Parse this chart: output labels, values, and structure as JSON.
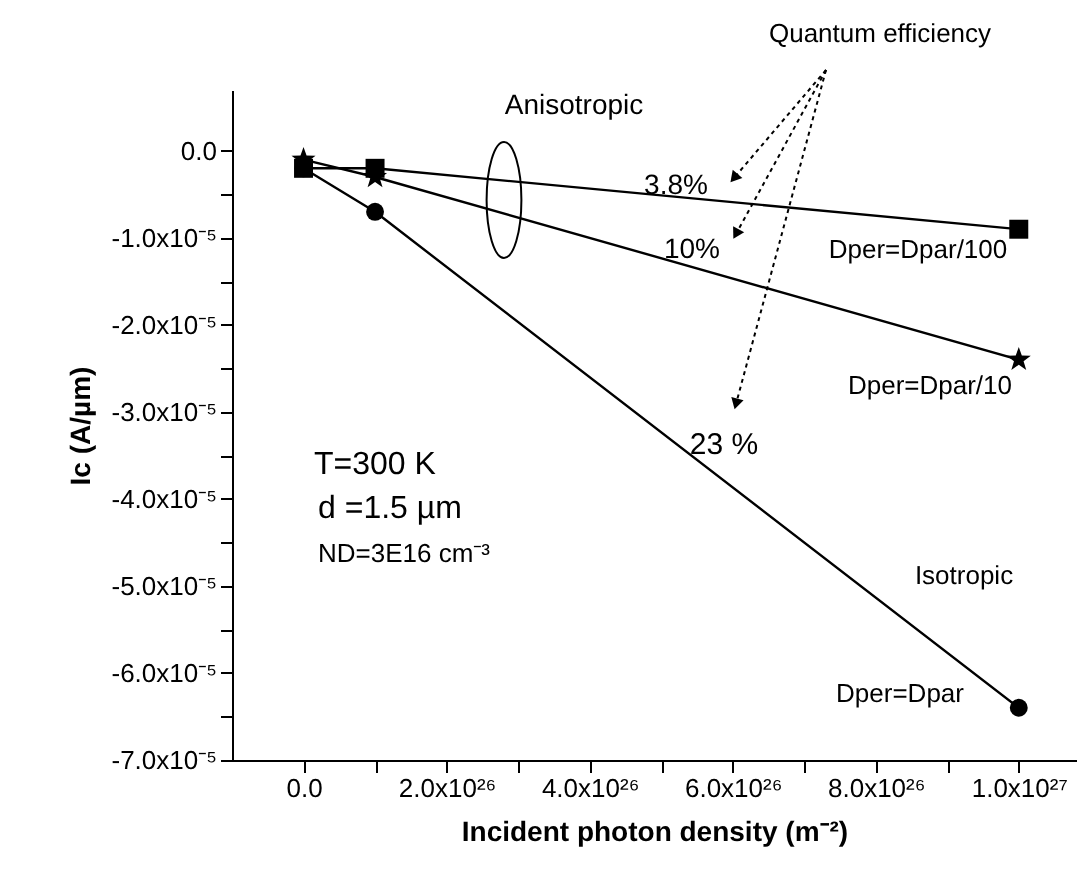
{
  "chart_data": {
    "type": "line",
    "xlabel": "Incident photon density (m⁻²)",
    "ylabel": "Ic (A/µm)",
    "x": [
      0,
      1e+26,
      1e+27
    ],
    "series": [
      {
        "name": "Dper=Dpar/100",
        "color": "#000000",
        "marker": "square",
        "values": [
          -2e-06,
          -2e-06,
          -9e-06
        ]
      },
      {
        "name": "Dper=Dpar/10",
        "color": "#000000",
        "marker": "star",
        "values": [
          -1e-06,
          -3e-06,
          -2.4e-05
        ]
      },
      {
        "name": "Dper=Dpar",
        "color": "#000000",
        "marker": "circle",
        "values": [
          -2e-06,
          -7e-06,
          -6.4e-05
        ]
      }
    ],
    "xlim": [
      -1e+26,
      1.08e+27
    ],
    "xticks": [
      {
        "value": 0,
        "label": "0.0"
      },
      {
        "value": 1e+26,
        "label": null
      },
      {
        "value": 2e+26,
        "label": "2.0x10²⁶"
      },
      {
        "value": 3e+26,
        "label": null
      },
      {
        "value": 4e+26,
        "label": "4.0x10²⁶"
      },
      {
        "value": 5e+26,
        "label": null
      },
      {
        "value": 6e+26,
        "label": "6.0x10²⁶"
      },
      {
        "value": 7e+26,
        "label": null
      },
      {
        "value": 8e+26,
        "label": "8.0x10²⁶"
      },
      {
        "value": 9e+26,
        "label": null
      },
      {
        "value": 1e+27,
        "label": "1.0x10²⁷"
      }
    ],
    "ylim": [
      -7e-05,
      7e-06
    ],
    "yticks": [
      {
        "value": 0,
        "label": "0.0"
      },
      {
        "value": -5e-06,
        "label": null
      },
      {
        "value": -1e-05,
        "label": "-1.0x10⁻⁵"
      },
      {
        "value": -1.5e-05,
        "label": null
      },
      {
        "value": -2e-05,
        "label": "-2.0x10⁻⁵"
      },
      {
        "value": -2.5e-05,
        "label": null
      },
      {
        "value": -3e-05,
        "label": "-3.0x10⁻⁵"
      },
      {
        "value": -3.5e-05,
        "label": null
      },
      {
        "value": -4e-05,
        "label": "-4.0x10⁻⁵"
      },
      {
        "value": -4.5e-05,
        "label": null
      },
      {
        "value": -5e-05,
        "label": "-5.0x10⁻⁵"
      },
      {
        "value": -5.5e-05,
        "label": null
      },
      {
        "value": -6e-05,
        "label": "-6.0x10⁻⁵"
      },
      {
        "value": -6.5e-05,
        "label": null
      },
      {
        "value": -7e-05,
        "label": "-7.0x10⁻⁵"
      }
    ],
    "grid": false,
    "line_style": "solid",
    "annotations": [
      "Quantum efficiency",
      "Anisotropic",
      "3.8%",
      "10%",
      "23 %",
      "Isotropic",
      "T=300 K",
      "d =1.5 µm",
      "ND=3E16 cm⁻³"
    ]
  }
}
